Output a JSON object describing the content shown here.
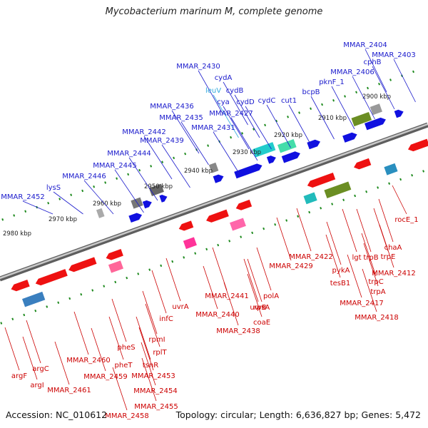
{
  "title": "Mycobacterium marinum M, complete genome",
  "footer": {
    "accession": "Accession: NC_010612",
    "topology": "Topology: circular; Length: 6,636,827 bp; Genes: 5,472"
  },
  "colors": {
    "forward_label": "#1a1acc",
    "reverse_label": "#cc0000",
    "special_label": "#33aadd",
    "forward_gene": "#1010e0",
    "reverse_gene": "#ee1111",
    "backbone": "#8a8a8a",
    "tick": "#1e8a1e"
  },
  "scale_labels": [
    "2900 kbp",
    "2910 kbp",
    "2920 kbp",
    "2930 kbp",
    "2940 kbp",
    "2950 kbp",
    "2960 kbp",
    "2970 kbp",
    "2980 kbp"
  ],
  "forward_labels": [
    "MMAR_2404",
    "MMAR_2403",
    "cphB",
    "MMAR_2406",
    "pknF_1",
    "bcpB",
    "cut1",
    "cydC",
    "MMAR_2430",
    "cydA",
    "cydB",
    "leuV",
    "cya",
    "cydD",
    "MMAR_2427",
    "MMAR_2431",
    "MMAR_2436",
    "MMAR_2435",
    "MMAR_2442",
    "MMAR_2439",
    "MMAR_2444",
    "MMAR_2445",
    "MMAR_2446",
    "lysS",
    "MMAR_2452"
  ],
  "reverse_labels": [
    "rocE_1",
    "chaA",
    "trpE",
    "MMAR_2412",
    "MMAR_2422",
    "pykA",
    "lgt",
    "trpB",
    "trpC",
    "tesB1",
    "MMAR_2417",
    "trpA",
    "MMAR_2418",
    "MMAR_2429",
    "MMAR_2441",
    "MMAR_2440",
    "uvrB",
    "polA",
    "rpsA",
    "coaE",
    "MMAR_2438",
    "uvrA",
    "infC",
    "rpmI",
    "rplT",
    "tsnR",
    "pheS",
    "pheT",
    "MMAR_2460",
    "MMAR_2459",
    "MMAR_2453",
    "MMAR_2454",
    "MMAR_2455",
    "MMAR_2458",
    "argF",
    "argC",
    "argI",
    "MMAR_2461"
  ]
}
